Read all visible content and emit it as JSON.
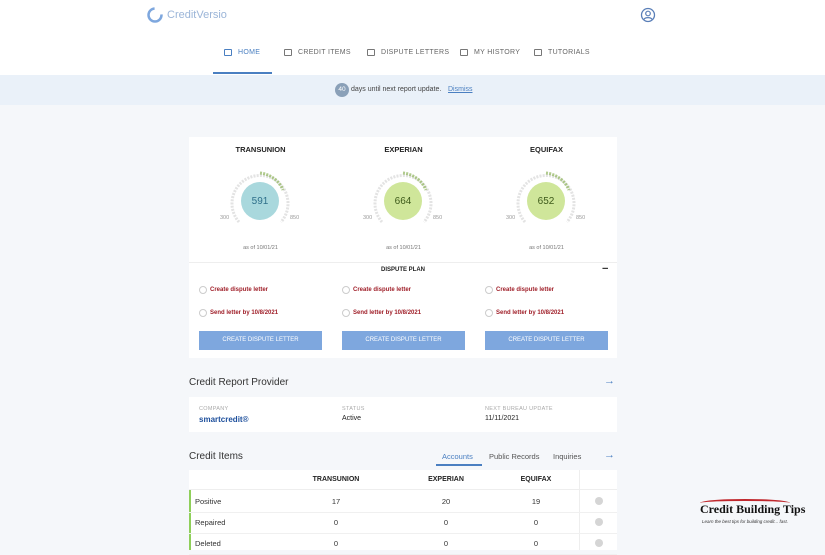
{
  "header": {
    "logo": "CreditVersio"
  },
  "nav": [
    "HOME",
    "CREDIT ITEMS",
    "DISPUTE LETTERS",
    "MY HISTORY",
    "TUTORIALS"
  ],
  "banner": {
    "days": "40",
    "text": "days until next report update.",
    "link": "Dismiss"
  },
  "bureaus": [
    {
      "name": "TRANSUNION",
      "score": 591,
      "min": "300",
      "max": "850",
      "date": "as of 10/01/21",
      "tasks": [
        "Create dispute letter",
        "Send letter by 10/8/2021"
      ],
      "button": "CREATE DISPUTE LETTER"
    },
    {
      "name": "EXPERIAN",
      "score": 664,
      "min": "300",
      "max": "850",
      "date": "as of 10/01/21",
      "tasks": [
        "Create dispute letter",
        "Send letter by 10/8/2021"
      ],
      "button": "CREATE DISPUTE LETTER"
    },
    {
      "name": "EQUIFAX",
      "score": 652,
      "min": "300",
      "max": "850",
      "date": "as of 10/01/21",
      "tasks": [
        "Create dispute letter",
        "Send letter by 10/8/2021"
      ],
      "button": "CREATE DISPUTE LETTER"
    }
  ],
  "dispute_plan": {
    "title": "DISPUTE PLAN",
    "toggle": "−"
  },
  "provider": {
    "title": "Credit Report Provider",
    "columns": [
      {
        "label": "COMPANY",
        "value": "smartcredit®"
      },
      {
        "label": "STATUS",
        "value": "Active"
      },
      {
        "label": "NEXT BUREAU UPDATE",
        "value": "11/11/2021"
      }
    ]
  },
  "credit_items": {
    "title": "Credit Items",
    "tabs": [
      "Accounts",
      "Public Records",
      "Inquiries"
    ],
    "columns": [
      "TRANSUNION",
      "EXPERIAN",
      "EQUIFAX"
    ],
    "rows": [
      [
        "Positive",
        17,
        20,
        19
      ],
      [
        "Repaired",
        0,
        0,
        0
      ],
      [
        "Deleted",
        0,
        0,
        0
      ]
    ]
  },
  "watermark": {
    "title": "Credit Building Tips",
    "subtitle": "Learn the best tips for building credit... fast."
  }
}
